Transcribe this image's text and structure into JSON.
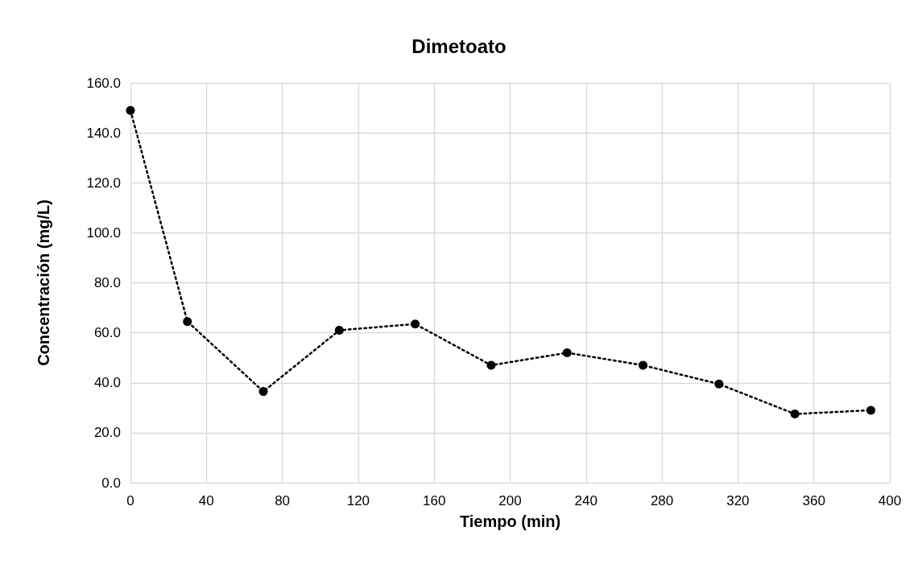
{
  "chart_data": {
    "type": "line",
    "title": "Dimetoato",
    "xlabel": "Tiempo (min)",
    "ylabel": "Concentración (mg/L)",
    "x": [
      0,
      30,
      70,
      110,
      150,
      190,
      230,
      270,
      310,
      350,
      390
    ],
    "series": [
      {
        "color": "#000000",
        "values": [
          149,
          64.5,
          36.5,
          61,
          63.5,
          47,
          52,
          47,
          39.5,
          27.5,
          29
        ]
      }
    ],
    "xlim": [
      0,
      400
    ],
    "xticks": [
      0,
      40,
      80,
      120,
      160,
      200,
      240,
      280,
      320,
      360,
      400
    ],
    "ylim": [
      0,
      160
    ],
    "yticks": [
      {
        "value": 0,
        "label": "0.0"
      },
      {
        "value": 20,
        "label": "20.0"
      },
      {
        "value": 40,
        "label": "40.0"
      },
      {
        "value": 60,
        "label": "60.0"
      },
      {
        "value": 80,
        "label": "80.0"
      },
      {
        "value": 100,
        "label": "100.0"
      },
      {
        "value": 120,
        "label": "120.0"
      },
      {
        "value": 140,
        "label": "140.0"
      },
      {
        "value": 160,
        "label": "160.0"
      }
    ],
    "grid": true,
    "marker": "circle",
    "line_style": "dotted"
  }
}
